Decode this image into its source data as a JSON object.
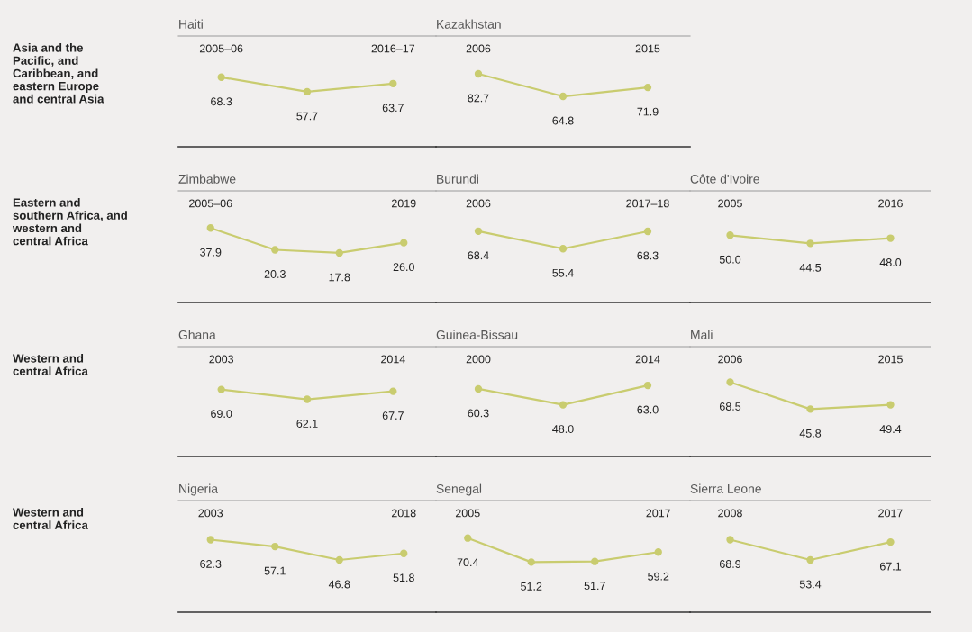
{
  "chart_data": [
    {
      "type": "line",
      "title": "Haiti",
      "annotations": [
        "Asia and the\nPacific, and\nCaribbean, and\neastern Europe\nand central Asia"
      ],
      "categories": [
        "2005–06",
        null,
        "2016–17"
      ],
      "values": [
        68.3,
        57.7,
        63.7
      ],
      "value_labels": [
        "68.3",
        "57.7",
        "63.7"
      ],
      "color": "#c9cc6f",
      "marker": "circle"
    },
    {
      "type": "line",
      "title": "Kazakhstan",
      "categories": [
        "2006",
        null,
        "2015"
      ],
      "values": [
        82.7,
        64.8,
        71.9
      ],
      "value_labels": [
        "82.7",
        "64.8",
        "71.9"
      ],
      "color": "#c9cc6f",
      "marker": "circle"
    },
    {
      "type": "line",
      "title": "Zimbabwe",
      "annotations": [
        "Eastern and\nsouthern Africa, and\nwestern and\ncentral Africa"
      ],
      "categories": [
        "2005–06",
        null,
        null,
        "2019"
      ],
      "values": [
        37.9,
        20.3,
        17.8,
        26.0
      ],
      "value_labels": [
        "37.9",
        "20.3",
        "17.8",
        "26.0"
      ],
      "color": "#c9cc6f",
      "marker": "circle"
    },
    {
      "type": "line",
      "title": "Burundi",
      "categories": [
        "2006",
        null,
        "2017–18"
      ],
      "values": [
        68.4,
        55.4,
        68.3
      ],
      "value_labels": [
        "68.4",
        "55.4",
        "68.3"
      ],
      "color": "#c9cc6f",
      "marker": "circle"
    },
    {
      "type": "line",
      "title": "Côte d'Ivoire",
      "categories": [
        "2005",
        null,
        "2016"
      ],
      "values": [
        50.0,
        44.5,
        48.0
      ],
      "value_labels": [
        "50.0",
        "44.5",
        "48.0"
      ],
      "color": "#c9cc6f",
      "marker": "circle"
    },
    {
      "type": "line",
      "title": "Ghana",
      "annotations": [
        "Western and\ncentral Africa"
      ],
      "categories": [
        "2003",
        null,
        "2014"
      ],
      "values": [
        69.0,
        62.1,
        67.7
      ],
      "value_labels": [
        "69.0",
        "62.1",
        "67.7"
      ],
      "color": "#c9cc6f",
      "marker": "circle"
    },
    {
      "type": "line",
      "title": "Guinea-Bissau",
      "categories": [
        "2000",
        null,
        "2014"
      ],
      "values": [
        60.3,
        48.0,
        63.0
      ],
      "value_labels": [
        "60.3",
        "48.0",
        "63.0"
      ],
      "color": "#c9cc6f",
      "marker": "circle"
    },
    {
      "type": "line",
      "title": "Mali",
      "categories": [
        "2006",
        null,
        "2015"
      ],
      "values": [
        68.5,
        45.8,
        49.4
      ],
      "value_labels": [
        "68.5",
        "45.8",
        "49.4"
      ],
      "color": "#c9cc6f",
      "marker": "circle"
    },
    {
      "type": "line",
      "title": "Nigeria",
      "annotations": [
        "Western and\ncentral Africa"
      ],
      "categories": [
        "2003",
        null,
        null,
        "2018"
      ],
      "values": [
        62.3,
        57.1,
        46.8,
        51.8
      ],
      "value_labels": [
        "62.3",
        "57.1",
        "46.8",
        "51.8"
      ],
      "color": "#c9cc6f",
      "marker": "circle"
    },
    {
      "type": "line",
      "title": "Senegal",
      "categories": [
        "2005",
        null,
        null,
        "2017"
      ],
      "values": [
        70.4,
        51.2,
        51.7,
        59.2
      ],
      "value_labels": [
        "70.4",
        "51.2",
        "51.7",
        "59.2"
      ],
      "color": "#c9cc6f",
      "marker": "circle"
    },
    {
      "type": "line",
      "title": "Sierra Leone",
      "categories": [
        "2008",
        null,
        "2017"
      ],
      "values": [
        68.9,
        53.4,
        67.1
      ],
      "value_labels": [
        "68.9",
        "53.4",
        "67.1"
      ],
      "color": "#c9cc6f",
      "marker": "circle"
    }
  ]
}
